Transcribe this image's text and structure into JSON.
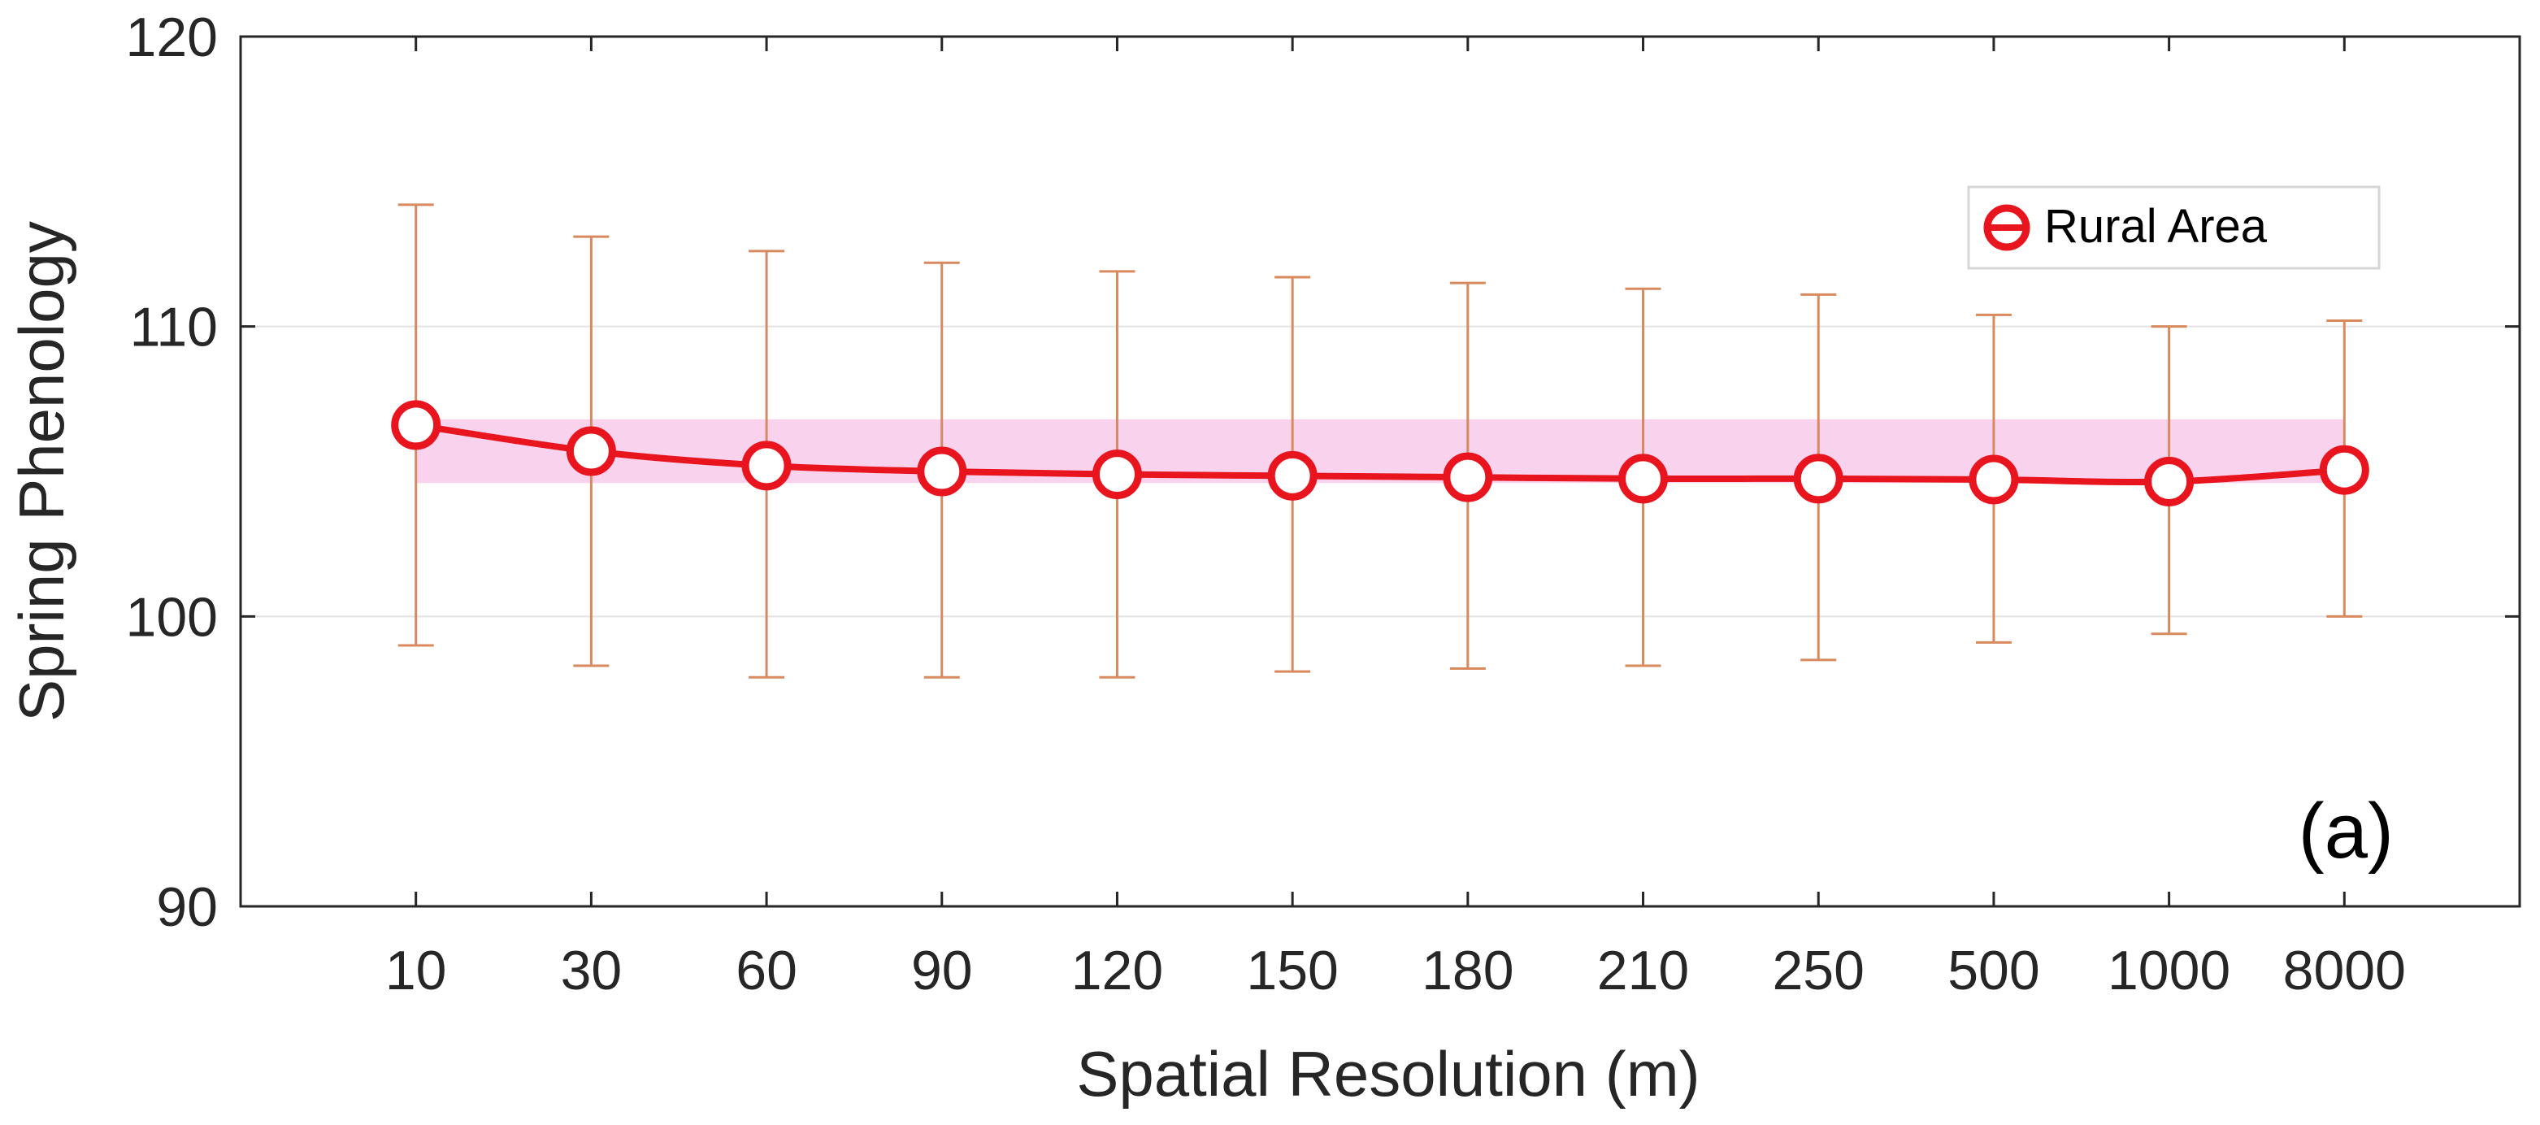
{
  "chart_data": {
    "type": "line",
    "title": "",
    "xlabel": "Spatial Resolution (m)",
    "ylabel": "Spring Phenology",
    "categories": [
      "10",
      "30",
      "60",
      "90",
      "120",
      "150",
      "180",
      "210",
      "250",
      "500",
      "1000",
      "8000"
    ],
    "xlim": [
      0,
      13
    ],
    "ylim": [
      90,
      120
    ],
    "yticks": [
      90,
      100,
      110,
      120
    ],
    "grid": true,
    "legend_position": "top-right",
    "panel_label": "(a)",
    "band": {
      "lower": 104.6,
      "upper": 106.8,
      "color": "#f9d3ee"
    },
    "series": [
      {
        "name": "Rural Area",
        "color": "#e8141e",
        "errorbar_color": "#d88a5e",
        "values": [
          106.6,
          105.7,
          105.2,
          105.0,
          104.9,
          104.85,
          104.8,
          104.75,
          104.75,
          104.72,
          104.65,
          105.05
        ],
        "error_low": [
          99.0,
          98.3,
          97.9,
          97.9,
          97.9,
          98.1,
          98.2,
          98.3,
          98.5,
          99.1,
          99.4,
          100.0
        ],
        "error_high": [
          114.2,
          113.1,
          112.6,
          112.2,
          111.9,
          111.7,
          111.5,
          111.3,
          111.1,
          110.4,
          110.0,
          110.2
        ]
      }
    ]
  }
}
